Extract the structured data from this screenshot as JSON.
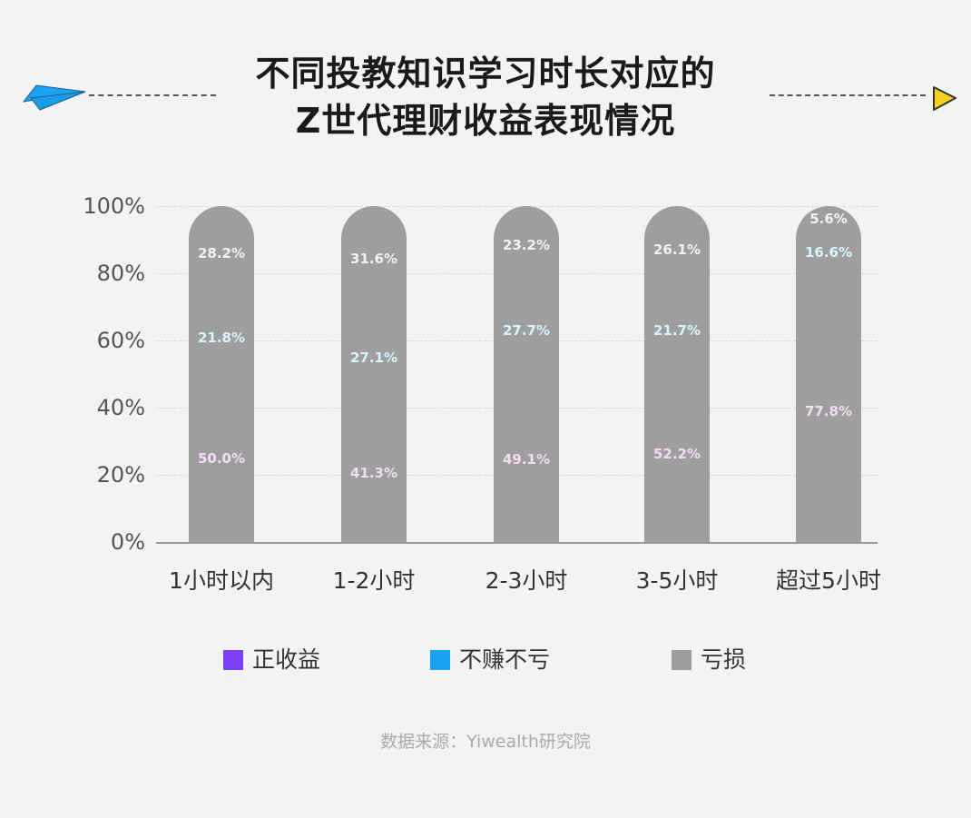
{
  "header": {
    "title_line1": "不同投教知识学习时长对应的",
    "title_line2": "Z世代理财收益表现情况"
  },
  "colors": {
    "positive": "#7b3ff7",
    "neutral": "#1aa3f2",
    "loss": "#9e9e9e",
    "plane": "#1aa3f2",
    "arrow": "#f2d21a"
  },
  "legend": [
    {
      "label": "正收益",
      "color": "#7b3ff7"
    },
    {
      "label": "不赚不亏",
      "color": "#1aa3f2"
    },
    {
      "label": "亏损",
      "color": "#9e9e9e"
    }
  ],
  "footer": {
    "source": "数据来源：Yiwealth研究院"
  },
  "chart_data": {
    "type": "bar",
    "stacked": true,
    "title": "不同投教知识学习时长对应的Z世代理财收益表现情况",
    "xlabel": "",
    "ylabel": "",
    "ylim": [
      0,
      100
    ],
    "yticks": [
      "0%",
      "20%",
      "40%",
      "60%",
      "80%",
      "100%"
    ],
    "grid": true,
    "legend_position": "bottom",
    "categories": [
      "1小时以内",
      "1-2小时",
      "2-3小时",
      "3-5小时",
      "超过5小时"
    ],
    "series": [
      {
        "name": "正收益",
        "values": [
          50.0,
          41.3,
          49.1,
          52.2,
          77.8
        ],
        "labels": [
          "50.0%",
          "41.3%",
          "49.1%",
          "52.2%",
          "77.8%"
        ]
      },
      {
        "name": "不赚不亏",
        "values": [
          21.8,
          27.1,
          27.7,
          21.7,
          16.6
        ],
        "labels": [
          "21.8%",
          "27.1%",
          "27.7%",
          "21.7%",
          "16.6%"
        ]
      },
      {
        "name": "亏损",
        "values": [
          28.2,
          31.6,
          23.2,
          26.1,
          5.6
        ],
        "labels": [
          "28.2%",
          "31.6%",
          "23.2%",
          "26.1%",
          "5.6%"
        ]
      }
    ],
    "source": "数据来源：Yiwealth研究院"
  }
}
